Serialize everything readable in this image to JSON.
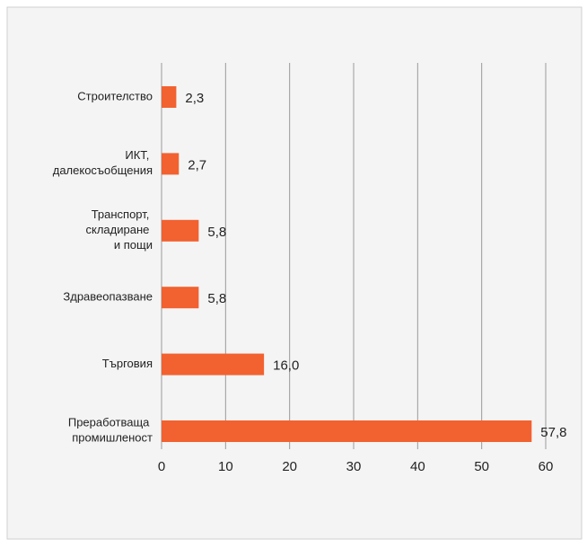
{
  "chart_data": {
    "type": "barh",
    "categories": [
      "Строителство",
      "ИКТ,\nдалекосъобщения",
      "Транспорт,\nскладиране\nи пощи",
      "Здравеопазване",
      "Търговия",
      "Преработваща\nпромишленост"
    ],
    "values": [
      2.3,
      2.7,
      5.8,
      5.8,
      16.0,
      57.8
    ],
    "value_labels": [
      "2,3",
      "2,7",
      "5,8",
      "5,8",
      "16,0",
      "57,8"
    ],
    "color": "#f26130",
    "xlim": [
      0,
      60
    ],
    "xticks": [
      0,
      10,
      20,
      30,
      40,
      50,
      60
    ],
    "grid": true
  }
}
